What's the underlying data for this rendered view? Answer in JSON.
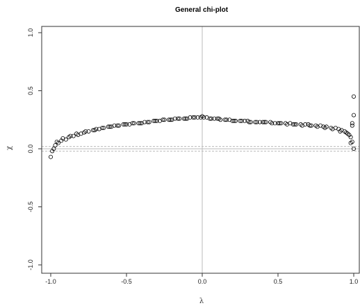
{
  "chart_data": {
    "type": "scatter",
    "title": "General chi-plot",
    "xlabel": "λ",
    "ylabel": "χ",
    "xlim": [
      -1.0,
      1.0
    ],
    "ylim": [
      -1.0,
      1.0
    ],
    "x_ticks": [
      -1.0,
      -0.5,
      0.0,
      0.5,
      1.0
    ],
    "x_tick_labels": [
      "-1.0",
      "-0.5",
      "0.0",
      "0.5",
      "1.0"
    ],
    "y_ticks": [
      -1.0,
      -0.5,
      0.0,
      0.5,
      1.0
    ],
    "y_tick_labels": [
      "-1.0",
      "-0.5",
      "0.0",
      "0.5",
      "1.0"
    ],
    "reference_lines": {
      "vertical_x": 0.0,
      "horizontal_y": 0.0,
      "dashed_y": [
        0.02,
        -0.02
      ],
      "color": "#bbbbbb"
    },
    "marker": "open-circle",
    "marker_color": "#000000",
    "grid": false,
    "series": [
      {
        "x": [
          -1.0,
          -0.98,
          -0.97,
          -0.95,
          -0.93,
          -0.9,
          -0.88,
          -0.85,
          -0.82,
          -0.8,
          -0.78,
          -0.75,
          -0.72,
          -0.7,
          -0.68,
          -0.65,
          -0.62,
          -0.6,
          -0.58,
          -0.55,
          -0.52,
          -0.5,
          -0.48,
          -0.45,
          -0.42,
          -0.4,
          -0.38,
          -0.35,
          -0.32,
          -0.3,
          -0.28,
          -0.25,
          -0.22,
          -0.2,
          -0.18,
          -0.15,
          -0.12,
          -0.1,
          -0.08,
          -0.05,
          -0.03,
          -0.01,
          0.0,
          0.01,
          0.03,
          0.05,
          0.08,
          0.1,
          0.12,
          0.15,
          0.18,
          0.2,
          0.22,
          0.25,
          0.28,
          0.3,
          0.32,
          0.35,
          0.38,
          0.4,
          0.42,
          0.45,
          0.48,
          0.5,
          0.52,
          0.55,
          0.58,
          0.6,
          0.62,
          0.65,
          0.68,
          0.7,
          0.72,
          0.75,
          0.78,
          0.8,
          0.82,
          0.85,
          0.88,
          0.9,
          0.92,
          0.94,
          0.96,
          0.97,
          0.98,
          0.99,
          1.0,
          -0.99,
          -0.96,
          -0.92,
          -0.87,
          -0.83,
          -0.77,
          -0.71,
          -0.66,
          -0.61,
          -0.56,
          -0.51,
          -0.46,
          -0.41,
          -0.36,
          -0.31,
          -0.26,
          -0.21,
          -0.16,
          -0.11,
          -0.06,
          0.06,
          0.11,
          0.16,
          0.21,
          0.26,
          0.31,
          0.36,
          0.41,
          0.46,
          0.51,
          0.56,
          0.61,
          0.66,
          0.71,
          0.76,
          0.81,
          0.86,
          0.91,
          0.95,
          0.99,
          1.0,
          1.0,
          0.99,
          0.98
        ],
        "y": [
          -0.07,
          0.0,
          0.03,
          0.05,
          0.07,
          0.08,
          0.1,
          0.11,
          0.12,
          0.13,
          0.14,
          0.15,
          0.16,
          0.17,
          0.17,
          0.18,
          0.19,
          0.19,
          0.2,
          0.2,
          0.21,
          0.21,
          0.21,
          0.22,
          0.22,
          0.22,
          0.23,
          0.23,
          0.24,
          0.24,
          0.24,
          0.25,
          0.25,
          0.25,
          0.26,
          0.26,
          0.26,
          0.26,
          0.27,
          0.27,
          0.27,
          0.27,
          0.28,
          0.27,
          0.27,
          0.26,
          0.26,
          0.26,
          0.25,
          0.25,
          0.25,
          0.24,
          0.24,
          0.24,
          0.24,
          0.24,
          0.23,
          0.23,
          0.23,
          0.23,
          0.23,
          0.23,
          0.22,
          0.22,
          0.22,
          0.22,
          0.22,
          0.21,
          0.21,
          0.21,
          0.21,
          0.21,
          0.2,
          0.2,
          0.2,
          0.19,
          0.19,
          0.18,
          0.18,
          0.17,
          0.16,
          0.15,
          0.13,
          0.12,
          0.1,
          0.06,
          0.0,
          -0.02,
          0.06,
          0.09,
          0.11,
          0.13,
          0.15,
          0.16,
          0.18,
          0.19,
          0.2,
          0.21,
          0.22,
          0.22,
          0.23,
          0.24,
          0.25,
          0.25,
          0.26,
          0.26,
          0.27,
          0.26,
          0.26,
          0.25,
          0.24,
          0.24,
          0.23,
          0.23,
          0.23,
          0.22,
          0.22,
          0.21,
          0.21,
          0.2,
          0.2,
          0.19,
          0.18,
          0.17,
          0.15,
          0.14,
          0.2,
          0.45,
          0.29,
          0.22,
          0.05
        ]
      }
    ]
  }
}
